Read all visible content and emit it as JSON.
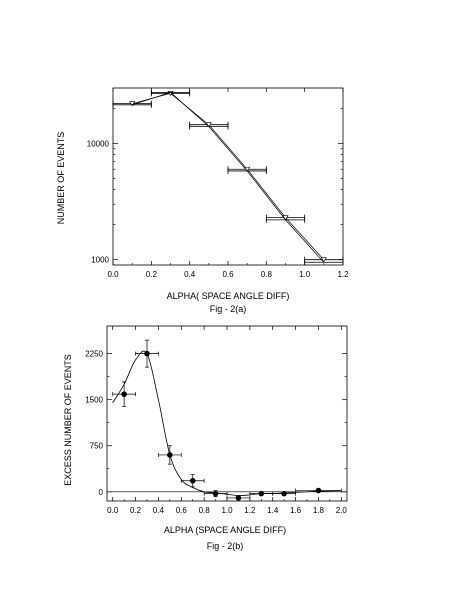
{
  "chart_data": [
    {
      "type": "line",
      "caption": "Fig - 2(a)",
      "xlabel": "ALPHA( SPACE ANGLE DIFF)",
      "ylabel": "NUMBER OF EVENTS",
      "xlim": [
        0.0,
        1.2
      ],
      "ylim": [
        900,
        30000
      ],
      "y_scale": "log",
      "x_ticks": [
        "0.0",
        "0.2",
        "0.4",
        "0.6",
        "0.8",
        "1.0",
        "1.2"
      ],
      "x_tick_values": [
        0.0,
        0.2,
        0.4,
        0.6,
        0.8,
        1.0,
        1.2
      ],
      "y_ticks": [
        "1000",
        "10000"
      ],
      "y_tick_values": [
        1000,
        10000
      ],
      "grid": false,
      "series": [
        {
          "values_x": [
            0.1,
            0.3,
            0.5,
            0.7,
            0.9,
            1.1
          ],
          "values_y": [
            22000,
            27000,
            14500,
            6000,
            2300,
            1000
          ],
          "xerr": 0.1
        },
        {
          "values_x": [
            0.1,
            0.3,
            0.5,
            0.7,
            0.9,
            1.1
          ],
          "values_y": [
            21500,
            27500,
            14000,
            5800,
            2200,
            950
          ],
          "xerr": 0.1
        }
      ]
    },
    {
      "type": "scatter",
      "caption": "Fig - 2(b)",
      "xlabel": "ALPHA (SPACE ANGLE DIFF)",
      "ylabel": "EXCESS NUMBER OF EVENTS",
      "xlim": [
        -0.05,
        2.05
      ],
      "ylim": [
        -150,
        2700
      ],
      "x_ticks": [
        "0.0",
        "0.2",
        "0.4",
        "0.6",
        "0.8",
        "1.0",
        "1.2",
        "1.4",
        "1.6",
        "1.8",
        "2.0"
      ],
      "x_tick_values": [
        0.0,
        0.2,
        0.4,
        0.6,
        0.8,
        1.0,
        1.2,
        1.4,
        1.6,
        1.8,
        2.0
      ],
      "y_ticks": [
        "0",
        "750",
        "1500",
        "2250"
      ],
      "y_tick_values": [
        0,
        750,
        1500,
        2250
      ],
      "grid": false,
      "points": [
        {
          "x": 0.1,
          "y": 1590,
          "xerr": 0.1,
          "yerr": 200
        },
        {
          "x": 0.3,
          "y": 2250,
          "xerr": 0.1,
          "yerr": 220
        },
        {
          "x": 0.5,
          "y": 600,
          "xerr": 0.1,
          "yerr": 150
        },
        {
          "x": 0.7,
          "y": 180,
          "xerr": 0.1,
          "yerr": 100
        },
        {
          "x": 0.9,
          "y": -30,
          "xerr": 0.1,
          "yerr": 50
        },
        {
          "x": 1.1,
          "y": -100,
          "xerr": 0.1,
          "yerr": 30
        },
        {
          "x": 1.3,
          "y": -30,
          "xerr": 0.1,
          "yerr": 20
        },
        {
          "x": 1.5,
          "y": -30,
          "xerr": 0.1,
          "yerr": 20
        },
        {
          "x": 1.8,
          "y": 20,
          "xerr": 0.2,
          "yerr": 15
        }
      ],
      "curve_x": [
        0.0,
        0.1,
        0.2,
        0.3,
        0.4,
        0.5,
        0.6,
        0.7,
        0.8,
        0.9,
        1.0,
        1.1,
        1.2,
        1.3,
        1.5,
        1.8,
        2.0
      ],
      "curve_y": [
        1450,
        1750,
        2150,
        2250,
        1500,
        600,
        200,
        70,
        0,
        -20,
        -40,
        -60,
        -50,
        -30,
        -20,
        10,
        20
      ],
      "zero_line": true
    }
  ]
}
